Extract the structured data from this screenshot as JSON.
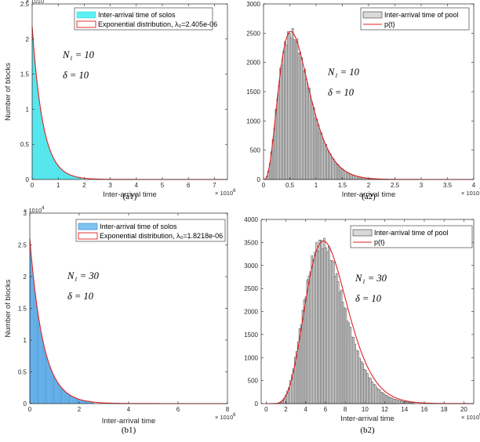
{
  "chart_data": [
    {
      "type": "bar",
      "id": "a1",
      "caption": "(a1)",
      "xlabel": "Inter-arrival time",
      "ylabel": "Number of blocks",
      "x_exponent": "× 10^6",
      "y_exponent": "× 10^4",
      "xlim": [
        0,
        7.5
      ],
      "ylim": [
        0,
        2.5
      ],
      "xticks": [
        "0",
        "1",
        "2",
        "3",
        "4",
        "5",
        "6",
        "7"
      ],
      "yticks": [
        "0",
        "0.5",
        "1",
        "1.5",
        "2",
        "2.5"
      ],
      "annotations": [
        "N₁ = 10",
        "δ = 10"
      ],
      "series": [
        {
          "name": "Inter-arrival time of solos",
          "kind": "histogram",
          "color": "#5ef0f5",
          "decay": 2.405e-06,
          "peak": 2.15,
          "range": [
            0,
            1.9
          ]
        },
        {
          "name": "Exponential distribution, λ₀=2.405e-06",
          "kind": "curve",
          "color": "#e02020",
          "decay": 2.405e-06,
          "peak": 2.18
        }
      ]
    },
    {
      "type": "bar",
      "id": "a2",
      "caption": "(a2)",
      "xlabel": "Inter-arrival time",
      "ylabel": "",
      "x_exponent": "× 10^7",
      "xlim": [
        0,
        4
      ],
      "ylim": [
        0,
        3000
      ],
      "xticks": [
        "0",
        "0.5",
        "1",
        "1.5",
        "2",
        "2.5",
        "3",
        "3.5",
        "4"
      ],
      "yticks": [
        "0",
        "500",
        "1000",
        "1500",
        "2000",
        "2500",
        "3000"
      ],
      "annotations": [
        "N₁ = 10",
        "δ = 10"
      ],
      "series": [
        {
          "name": "Inter-arrival time of pool",
          "kind": "histogram",
          "color": "#d9d9d9",
          "peak": 2500,
          "mode": 0.52,
          "shape": "gamma",
          "range": [
            0.05,
            2.5
          ]
        },
        {
          "name": "p(t)",
          "kind": "curve",
          "color": "#e02020",
          "peak": 2530,
          "mode": 0.52
        }
      ]
    },
    {
      "type": "bar",
      "id": "b1",
      "caption": "(b1)",
      "xlabel": "Inter-arrival time",
      "ylabel": "Number of blocks",
      "x_exponent": "× 10^6",
      "y_exponent": "× 10^4",
      "xlim": [
        0,
        8
      ],
      "ylim": [
        0,
        3
      ],
      "xticks": [
        "0",
        "2",
        "4",
        "6",
        "8"
      ],
      "yticks": [
        "0",
        "0.5",
        "1",
        "1.5",
        "2",
        "2.5",
        "3"
      ],
      "annotations": [
        "N₁ = 30",
        "δ = 10"
      ],
      "series": [
        {
          "name": "Inter-arrival time of solos",
          "kind": "histogram",
          "color": "#7fc6f2",
          "decay": 1.8218e-06,
          "peak": 2.55,
          "range": [
            0,
            2.6
          ]
        },
        {
          "name": "Exponential distribution, λ₀=1.8218e-06",
          "kind": "curve",
          "color": "#e02020",
          "decay": 1.8218e-06,
          "peak": 2.6
        }
      ]
    },
    {
      "type": "bar",
      "id": "b2",
      "caption": "(b2)",
      "xlabel": "Inter-arrival time",
      "ylabel": "",
      "x_exponent": "× 10^6",
      "xlim": [
        -0.5,
        21
      ],
      "ylim": [
        0,
        4000
      ],
      "xticks": [
        "0",
        "2",
        "4",
        "6",
        "8",
        "10",
        "12",
        "14",
        "16",
        "18",
        "20"
      ],
      "yticks": [
        "0",
        "500",
        "1000",
        "1500",
        "2000",
        "2500",
        "3000",
        "3500",
        "4000"
      ],
      "annotations": [
        "N₁ = 30",
        "δ = 10"
      ],
      "series": [
        {
          "name": "Inter-arrival time of pool",
          "kind": "histogram",
          "color": "#d9d9d9",
          "peak": 3500,
          "mode": 5.6,
          "shape": "gamma",
          "range": [
            0.2,
            15
          ]
        },
        {
          "name": "p(t)",
          "kind": "curve",
          "color": "#e02020",
          "peak": 3530,
          "mode": 5.8
        }
      ]
    }
  ]
}
